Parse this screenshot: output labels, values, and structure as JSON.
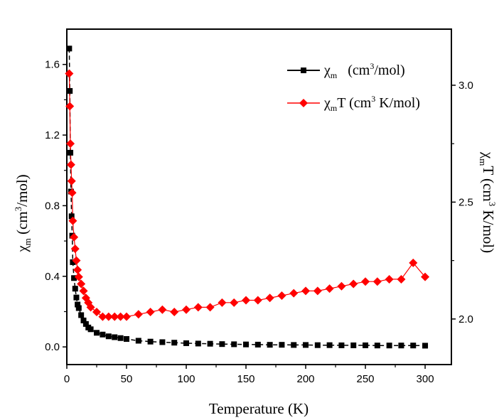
{
  "chart_data": {
    "type": "scatter",
    "xlabel": "Temperature (K)",
    "ylabel_left": {
      "symbol": "χ",
      "sub": "m",
      "pre_sup": " (cm",
      "sup": "3",
      "post_sup": "/mol)"
    },
    "ylabel_right": {
      "symbol": "χ",
      "sub": "m",
      "pre_sup": "T (cm",
      "sup": "3",
      "post_sup": " K/mol)"
    },
    "xlim": [
      0,
      322
    ],
    "ylim_left": [
      -0.1,
      1.8
    ],
    "ylim_right": [
      1.805,
      3.24
    ],
    "x_ticks": [
      0,
      50,
      100,
      150,
      200,
      250,
      300
    ],
    "x_tick_labels": [
      "0",
      "50",
      "100",
      "150",
      "200",
      "250",
      "300"
    ],
    "y_left_ticks": [
      0.0,
      0.4,
      0.8,
      1.2,
      1.6
    ],
    "y_left_tick_labels": [
      "0.0",
      "0.4",
      "0.8",
      "1.2",
      "1.6"
    ],
    "y_right_ticks": [
      2.0,
      2.5,
      3.0
    ],
    "y_right_tick_labels": [
      "2.0",
      "2.5",
      "3.0"
    ],
    "grid": false,
    "legend_position": "top-right",
    "legend": [
      {
        "symbol": "χ",
        "sub": "m",
        "pre_sup": "   (cm",
        "sup": "3",
        "post_sup": "/mol)"
      },
      {
        "symbol": "χ",
        "sub": "m",
        "pre_sup": "T (cm",
        "sup": "3",
        "post_sup": " K/mol)"
      }
    ],
    "series": [
      {
        "name": "χm (cm3/mol)",
        "axis": "left",
        "color": "#000000",
        "marker": "square",
        "x": [
          2,
          2.5,
          3,
          3.5,
          4,
          4.5,
          5,
          6,
          7,
          8,
          9,
          10,
          12,
          14,
          16,
          18,
          20,
          25,
          30,
          35,
          40,
          45,
          50,
          60,
          70,
          80,
          90,
          100,
          110,
          120,
          130,
          140,
          150,
          160,
          170,
          180,
          190,
          200,
          210,
          220,
          230,
          240,
          250,
          260,
          270,
          280,
          290,
          300
        ],
        "values": [
          1.69,
          1.45,
          1.1,
          0.88,
          0.74,
          0.63,
          0.48,
          0.39,
          0.33,
          0.28,
          0.24,
          0.22,
          0.18,
          0.15,
          0.13,
          0.11,
          0.1,
          0.08,
          0.07,
          0.06,
          0.055,
          0.05,
          0.045,
          0.035,
          0.03,
          0.027,
          0.024,
          0.021,
          0.019,
          0.018,
          0.016,
          0.015,
          0.014,
          0.013,
          0.012,
          0.012,
          0.011,
          0.011,
          0.01,
          0.01,
          0.009,
          0.009,
          0.009,
          0.008,
          0.008,
          0.008,
          0.008,
          0.007
        ]
      },
      {
        "name": "χmT (cm3 K/mol)",
        "axis": "right",
        "color": "#ff0000",
        "marker": "diamond",
        "x": [
          2,
          2.5,
          3,
          3.5,
          4,
          4.5,
          5,
          6,
          7,
          8,
          9,
          10,
          12,
          14,
          16,
          18,
          20,
          25,
          30,
          35,
          40,
          45,
          50,
          60,
          70,
          80,
          90,
          100,
          110,
          120,
          130,
          140,
          150,
          160,
          170,
          180,
          190,
          200,
          210,
          220,
          230,
          240,
          250,
          260,
          270,
          280,
          290,
          300
        ],
        "values": [
          3.05,
          2.91,
          2.75,
          2.66,
          2.59,
          2.54,
          2.42,
          2.35,
          2.3,
          2.25,
          2.21,
          2.18,
          2.15,
          2.12,
          2.09,
          2.07,
          2.05,
          2.03,
          2.01,
          2.01,
          2.01,
          2.01,
          2.01,
          2.02,
          2.03,
          2.04,
          2.03,
          2.04,
          2.05,
          2.05,
          2.07,
          2.07,
          2.08,
          2.08,
          2.09,
          2.1,
          2.11,
          2.12,
          2.12,
          2.13,
          2.14,
          2.15,
          2.16,
          2.16,
          2.17,
          2.17,
          2.24,
          2.18
        ]
      }
    ]
  }
}
